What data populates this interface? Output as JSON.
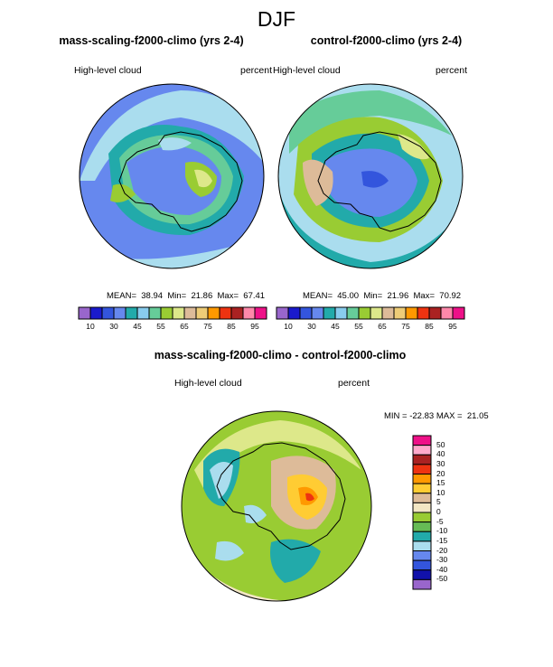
{
  "figure": {
    "title": "DJF"
  },
  "panels": [
    {
      "title": "mass-scaling-f2000-climo (yrs 2-4)",
      "variable": "High-level cloud",
      "units": "percent",
      "stats_text": "MEAN=  38.94  Min=  21.86  Max=  67.41",
      "mean": 38.94,
      "min": 21.86,
      "max": 67.41
    },
    {
      "title": "control-f2000-climo (yrs 2-4)",
      "variable": "High-level cloud",
      "units": "percent",
      "stats_text": "MEAN=  45.00  Min=  21.96  Max=  70.92",
      "mean": 45.0,
      "min": 21.96,
      "max": 70.92
    },
    {
      "title": "mass-scaling-f2000-climo - control-f2000-climo",
      "variable": "High-level cloud",
      "units": "percent",
      "stats_text": "MIN = -22.83 MAX =  21.05",
      "min": -22.83,
      "max": 21.05
    }
  ],
  "colorbar_abs": {
    "tick_labels": [
      "10",
      "30",
      "45",
      "55",
      "65",
      "75",
      "85",
      "95"
    ],
    "colors": [
      "#9966cc",
      "#1a1acc",
      "#3355dd",
      "#6688ee",
      "#22aaaa",
      "#88ccee",
      "#66cc99",
      "#99cc33",
      "#dde88a",
      "#ddbb99",
      "#eecc77",
      "#ff9900",
      "#ee3311",
      "#aa2222",
      "#ff88aa",
      "#ee1188"
    ]
  },
  "colorbar_diff": {
    "tick_labels": [
      "50",
      "40",
      "30",
      "20",
      "15",
      "10",
      "5",
      "0",
      "-5",
      "-10",
      "-15",
      "-20",
      "-30",
      "-40",
      "-50"
    ],
    "colors": [
      "#ee1188",
      "#ffaacc",
      "#aa2222",
      "#ee3311",
      "#ff9900",
      "#ffcc33",
      "#ddbb99",
      "#f2e6c4",
      "#99cc33",
      "#66bb55",
      "#22aaaa",
      "#aaddee",
      "#6688ee",
      "#3355dd",
      "#1111aa",
      "#9966cc"
    ]
  },
  "map_colors": {
    "ocean_low": "#6688ee",
    "ocean_mid": "#aaddee",
    "teal": "#22aaaa",
    "green": "#99cc33",
    "light_green": "#dde88a",
    "tan": "#ddbb99",
    "cream": "#f2e6c4",
    "yellow": "#ffcc33",
    "orange": "#ff9900",
    "red": "#ee3311",
    "coastline": "#000000"
  }
}
